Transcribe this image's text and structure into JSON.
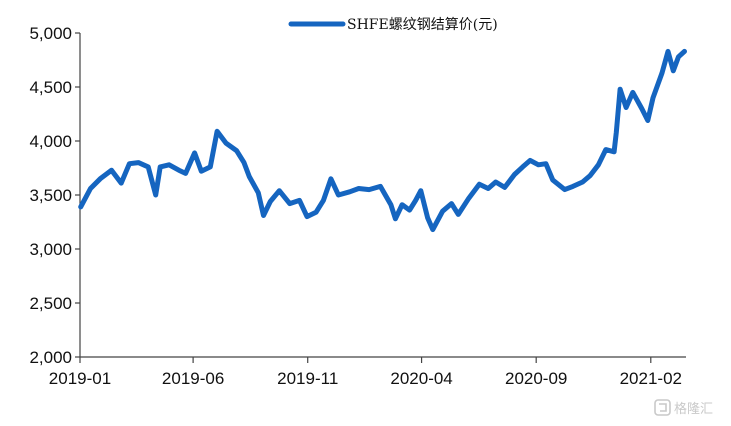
{
  "chart_data": {
    "type": "line",
    "title": "",
    "xlabel": "",
    "ylabel": "",
    "ylim": [
      2000,
      5000
    ],
    "y_ticks": [
      2000,
      2500,
      3000,
      3500,
      4000,
      4500,
      5000
    ],
    "y_tick_labels": [
      "2,000",
      "2,500",
      "3,000",
      "3,500",
      "4,000",
      "4,500",
      "5,000"
    ],
    "x_range": [
      "2019-01-01",
      "2021-03-20"
    ],
    "x_ticks": [
      "2019-01-01",
      "2019-06-01",
      "2019-11-01",
      "2020-04-01",
      "2020-09-01",
      "2021-02-01"
    ],
    "x_tick_labels": [
      "2019-01",
      "2019-06",
      "2019-11",
      "2020-04",
      "2020-09",
      "2021-02"
    ],
    "grid": false,
    "legend": {
      "placement": "top",
      "color": "#1565c0"
    },
    "series": [
      {
        "name": "SHFE螺纹钢结算价(元)",
        "color": "#1565c0",
        "points": [
          [
            "2019-01-02",
            3390
          ],
          [
            "2019-01-15",
            3560
          ],
          [
            "2019-01-28",
            3650
          ],
          [
            "2019-02-12",
            3730
          ],
          [
            "2019-02-25",
            3610
          ],
          [
            "2019-03-08",
            3790
          ],
          [
            "2019-03-20",
            3800
          ],
          [
            "2019-04-02",
            3760
          ],
          [
            "2019-04-12",
            3500
          ],
          [
            "2019-04-18",
            3760
          ],
          [
            "2019-04-30",
            3780
          ],
          [
            "2019-05-13",
            3730
          ],
          [
            "2019-05-22",
            3700
          ],
          [
            "2019-06-03",
            3890
          ],
          [
            "2019-06-12",
            3720
          ],
          [
            "2019-06-24",
            3760
          ],
          [
            "2019-07-03",
            4090
          ],
          [
            "2019-07-15",
            3980
          ],
          [
            "2019-07-29",
            3910
          ],
          [
            "2019-08-08",
            3800
          ],
          [
            "2019-08-15",
            3670
          ],
          [
            "2019-08-27",
            3520
          ],
          [
            "2019-09-03",
            3310
          ],
          [
            "2019-09-12",
            3440
          ],
          [
            "2019-09-24",
            3540
          ],
          [
            "2019-10-08",
            3420
          ],
          [
            "2019-10-21",
            3450
          ],
          [
            "2019-10-31",
            3300
          ],
          [
            "2019-11-12",
            3340
          ],
          [
            "2019-11-22",
            3450
          ],
          [
            "2019-12-02",
            3650
          ],
          [
            "2019-12-12",
            3500
          ],
          [
            "2019-12-27",
            3530
          ],
          [
            "2020-01-08",
            3560
          ],
          [
            "2020-01-22",
            3550
          ],
          [
            "2020-02-06",
            3580
          ],
          [
            "2020-02-20",
            3410
          ],
          [
            "2020-02-26",
            3280
          ],
          [
            "2020-03-06",
            3410
          ],
          [
            "2020-03-16",
            3360
          ],
          [
            "2020-03-24",
            3450
          ],
          [
            "2020-03-31",
            3540
          ],
          [
            "2020-04-09",
            3290
          ],
          [
            "2020-04-16",
            3180
          ],
          [
            "2020-04-29",
            3350
          ],
          [
            "2020-05-11",
            3420
          ],
          [
            "2020-05-20",
            3320
          ],
          [
            "2020-06-03",
            3470
          ],
          [
            "2020-06-17",
            3600
          ],
          [
            "2020-06-29",
            3560
          ],
          [
            "2020-07-09",
            3620
          ],
          [
            "2020-07-21",
            3570
          ],
          [
            "2020-08-03",
            3690
          ],
          [
            "2020-08-14",
            3760
          ],
          [
            "2020-08-24",
            3820
          ],
          [
            "2020-09-04",
            3780
          ],
          [
            "2020-09-14",
            3790
          ],
          [
            "2020-09-23",
            3640
          ],
          [
            "2020-10-09",
            3550
          ],
          [
            "2020-10-20",
            3580
          ],
          [
            "2020-11-02",
            3620
          ],
          [
            "2020-11-12",
            3680
          ],
          [
            "2020-11-23",
            3780
          ],
          [
            "2020-12-03",
            3920
          ],
          [
            "2020-12-14",
            3900
          ],
          [
            "2020-12-17",
            4080
          ],
          [
            "2020-12-22",
            4480
          ],
          [
            "2020-12-30",
            4310
          ],
          [
            "2021-01-08",
            4450
          ],
          [
            "2021-01-20",
            4300
          ],
          [
            "2021-01-28",
            4190
          ],
          [
            "2021-02-04",
            4400
          ],
          [
            "2021-02-16",
            4630
          ],
          [
            "2021-02-24",
            4830
          ],
          [
            "2021-03-03",
            4650
          ],
          [
            "2021-03-10",
            4780
          ],
          [
            "2021-03-18",
            4830
          ]
        ]
      }
    ]
  },
  "watermark": {
    "text": "格隆汇",
    "icon": "gelonghui-logo-icon"
  }
}
